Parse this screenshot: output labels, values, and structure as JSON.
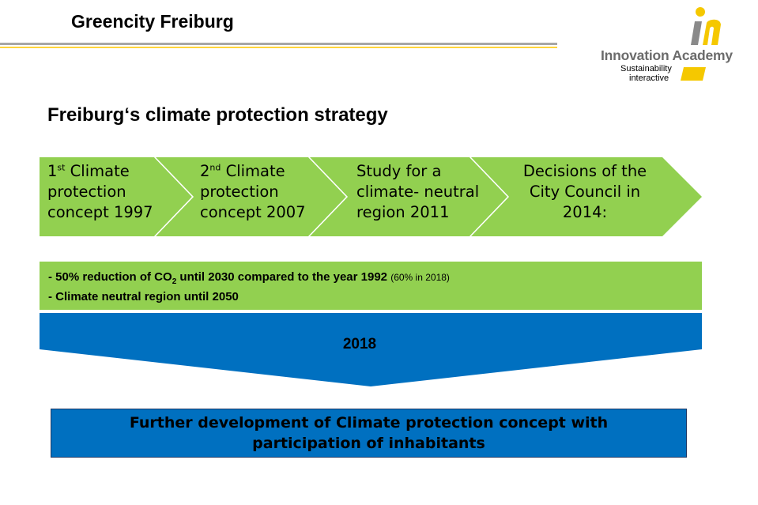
{
  "header": {
    "title": "Greencity Freiburg"
  },
  "logo": {
    "name": "Innovation Academy",
    "tagline_line1": "Sustainability",
    "tagline_line2": "interactive",
    "mark": "in"
  },
  "subtitle": "Freiburg‘s climate protection strategy",
  "process_steps": [
    {
      "ordinal_num": "1",
      "ordinal_suffix": "st",
      "line1_rest": " Climate",
      "line2": "protection",
      "line3": "concept 1997"
    },
    {
      "ordinal_num": "2",
      "ordinal_suffix": "nd",
      "line1_rest": " Climate",
      "line2": "protection",
      "line3": "concept 2007"
    },
    {
      "line1": "Study for a",
      "line2": "climate- neutral",
      "line3": "region 2011"
    },
    {
      "line1": "Decisions of the",
      "line2": "City Council in",
      "line3": "2014:"
    }
  ],
  "goals": {
    "goal1_pre": "- 50% reduction of  CO",
    "goal1_sub": "2",
    "goal1_post": " until 2030 compared to the year 1992 ",
    "goal1_note": "(60% in 2018)",
    "goal2": "- Climate neutral region until 2050"
  },
  "year_label": "2018",
  "result_text": "Further development of Climate protection concept with participation of inhabitants",
  "colors": {
    "green": "#92d050",
    "blue": "#0070c0",
    "rule_gray": "#a6a6a6",
    "rule_yellow": "#ffd43a",
    "logo_yellow": "#f5c800"
  }
}
